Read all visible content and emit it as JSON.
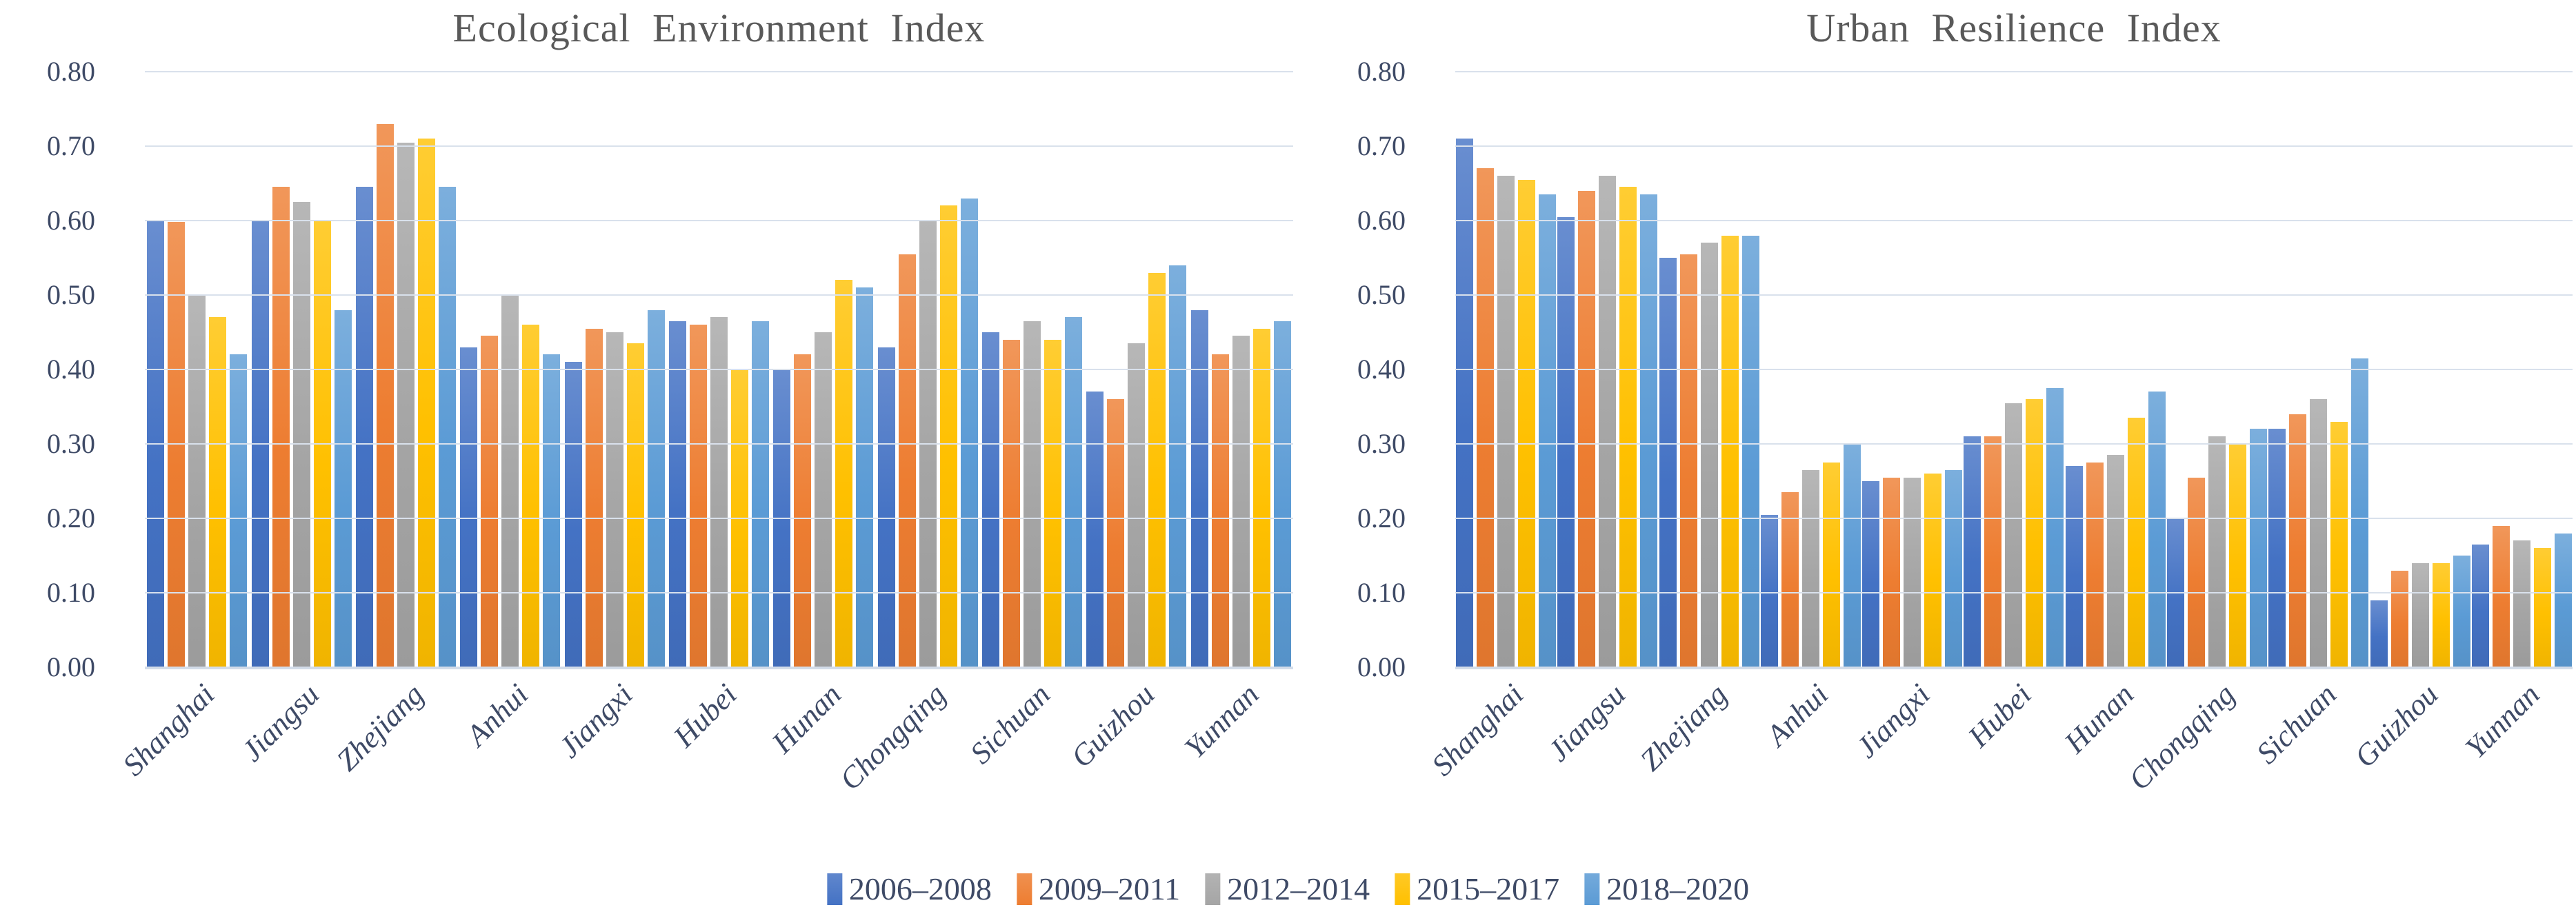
{
  "page": {
    "background": "#ffffff"
  },
  "palette": {
    "title_text": "#595959",
    "axis_text": "#3E4A66",
    "gridline": "#D9E1EC",
    "baseline": "#D3DCE9"
  },
  "chart_data": [
    {
      "type": "bar",
      "title": "Ecological Environment Index",
      "xlabel": "",
      "ylabel": "",
      "ylim": [
        0,
        0.8
      ],
      "ytick_step": 0.1,
      "grid": true,
      "legend_position": "bottom-center-shared",
      "categories": [
        "Shanghai",
        "Jiangsu",
        "Zhejiang",
        "Anhui",
        "Jiangxi",
        "Hubei",
        "Hunan",
        "Chongqing",
        "Sichuan",
        "Guizhou",
        "Yunnan"
      ],
      "series": [
        {
          "name": "2006–2008",
          "color": "#4472C4",
          "values": [
            0.6,
            0.6,
            0.645,
            0.43,
            0.41,
            0.465,
            0.4,
            0.43,
            0.45,
            0.37,
            0.48
          ]
        },
        {
          "name": "2009–2011",
          "color": "#ED7D31",
          "values": [
            0.598,
            0.645,
            0.73,
            0.445,
            0.455,
            0.46,
            0.42,
            0.555,
            0.44,
            0.36,
            0.42
          ]
        },
        {
          "name": "2012–2014",
          "color": "#A5A5A5",
          "values": [
            0.5,
            0.625,
            0.705,
            0.5,
            0.45,
            0.47,
            0.45,
            0.6,
            0.465,
            0.435,
            0.445
          ]
        },
        {
          "name": "2015–2017",
          "color": "#FFC000",
          "values": [
            0.47,
            0.6,
            0.71,
            0.46,
            0.435,
            0.4,
            0.52,
            0.62,
            0.44,
            0.53,
            0.455
          ]
        },
        {
          "name": "2018–2020",
          "color": "#5B9BD5",
          "values": [
            0.42,
            0.48,
            0.645,
            0.42,
            0.48,
            0.465,
            0.51,
            0.63,
            0.47,
            0.54,
            0.465
          ]
        }
      ]
    },
    {
      "type": "bar",
      "title": "Urban Resilience Index",
      "xlabel": "",
      "ylabel": "",
      "ylim": [
        0,
        0.8
      ],
      "ytick_step": 0.1,
      "grid": true,
      "legend_position": "bottom-center-shared",
      "categories": [
        "Shanghai",
        "Jiangsu",
        "Zhejiang",
        "Anhui",
        "Jiangxi",
        "Hubei",
        "Hunan",
        "Chongqing",
        "Sichuan",
        "Guizhou",
        "Yunnan"
      ],
      "series": [
        {
          "name": "2006–2008",
          "color": "#4472C4",
          "values": [
            0.71,
            0.605,
            0.55,
            0.205,
            0.25,
            0.31,
            0.27,
            0.2,
            0.32,
            0.09,
            0.165
          ]
        },
        {
          "name": "2009–2011",
          "color": "#ED7D31",
          "values": [
            0.67,
            0.64,
            0.555,
            0.235,
            0.255,
            0.31,
            0.275,
            0.255,
            0.34,
            0.13,
            0.19
          ]
        },
        {
          "name": "2012–2014",
          "color": "#A5A5A5",
          "values": [
            0.66,
            0.66,
            0.57,
            0.265,
            0.255,
            0.355,
            0.285,
            0.31,
            0.36,
            0.14,
            0.17
          ]
        },
        {
          "name": "2015–2017",
          "color": "#FFC000",
          "values": [
            0.655,
            0.645,
            0.58,
            0.275,
            0.26,
            0.36,
            0.335,
            0.3,
            0.33,
            0.14,
            0.16
          ]
        },
        {
          "name": "2018–2020",
          "color": "#5B9BD5",
          "values": [
            0.635,
            0.635,
            0.58,
            0.3,
            0.265,
            0.375,
            0.37,
            0.32,
            0.415,
            0.15,
            0.18
          ]
        }
      ]
    }
  ]
}
